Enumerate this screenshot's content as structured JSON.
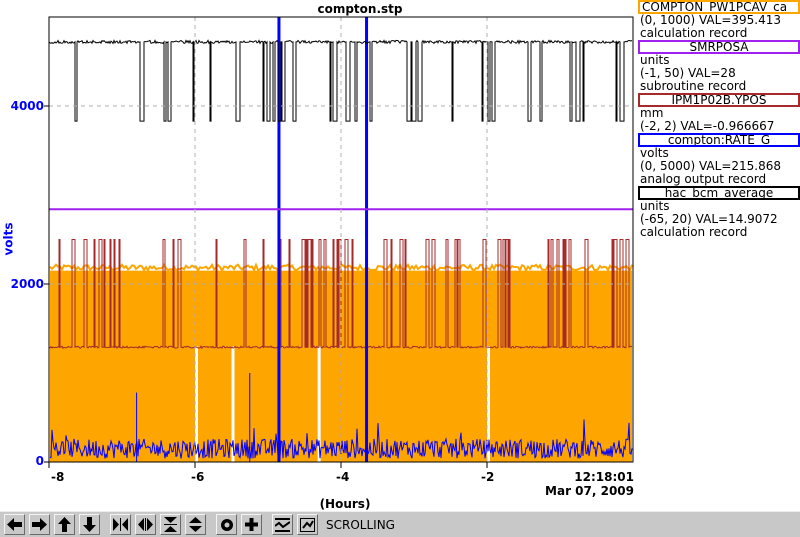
{
  "plot": {
    "title": "compton.stp",
    "ylabel": "volts",
    "xlabel": "(Hours)",
    "yticks": [
      "4000",
      "2000",
      "0"
    ],
    "xticks": [
      "-8",
      "-6",
      "-4",
      "-2"
    ],
    "time": "12:18:01",
    "date": "Mar 07, 2009"
  },
  "legend": [
    {
      "name": "COMPTON_PW1PCAV_ca",
      "color": "#ffa500",
      "lines": [
        "(0, 1000) VAL=395.413",
        "calculation record"
      ]
    },
    {
      "name": "SMRPOSA",
      "color": "#a020f0",
      "lines": [
        "units",
        "(-1, 50) VAL=28",
        "subroutine record"
      ]
    },
    {
      "name": "IPM1P02B.YPOS",
      "color": "#a52a2a",
      "lines": [
        "mm",
        "(-2, 2) VAL=-0.966667"
      ]
    },
    {
      "name": "compton:RATE_G",
      "color": "#0000ff",
      "lines": [
        "volts",
        "(0, 5000) VAL=215.868",
        "analog output record"
      ]
    },
    {
      "name": "hac_bcm_average",
      "color": "#000000",
      "lines": [
        "units",
        "(-65, 20) VAL=14.9072",
        "calculation record"
      ]
    }
  ],
  "toolbar": {
    "buttons": [
      "arrow-left-icon",
      "arrow-right-icon",
      "arrow-up-icon",
      "arrow-down-icon",
      "zoom-in-x-icon",
      "zoom-out-x-icon",
      "zoom-in-y-icon",
      "zoom-out-y-icon",
      "autoscale-icon",
      "add-icon",
      "reset-icon",
      "toggle-scroll-icon"
    ],
    "status": "SCROLLING"
  },
  "chart_data": {
    "type": "line",
    "title": "compton.stp",
    "xlabel": "(Hours)",
    "ylabel": "volts",
    "xlim": [
      -8,
      0
    ],
    "ylim": [
      0,
      5000
    ],
    "xticks": [
      -8,
      -6,
      -4,
      -2
    ],
    "yticks": [
      0,
      2000,
      4000
    ],
    "grid": true,
    "legend_position": "right",
    "series": [
      {
        "name": "COMPTON_PW1PCAV_ca",
        "color": "#ffa500",
        "band": [
          0,
          2150
        ],
        "approx_mean": 1000
      },
      {
        "name": "SMRPOSA",
        "color": "#a020f0",
        "constant": 2840
      },
      {
        "name": "IPM1P02B.YPOS",
        "color": "#a52a2a",
        "baseline": 1290,
        "spikes_to": 2500
      },
      {
        "name": "compton:RATE_G",
        "color": "#0000ff",
        "baseline": 150,
        "spikes_at": [
          -4.85,
          -3.65
        ]
      },
      {
        "name": "hac_bcm_average",
        "color": "#000000",
        "baseline": 4720,
        "drops_to": 3830
      }
    ]
  }
}
